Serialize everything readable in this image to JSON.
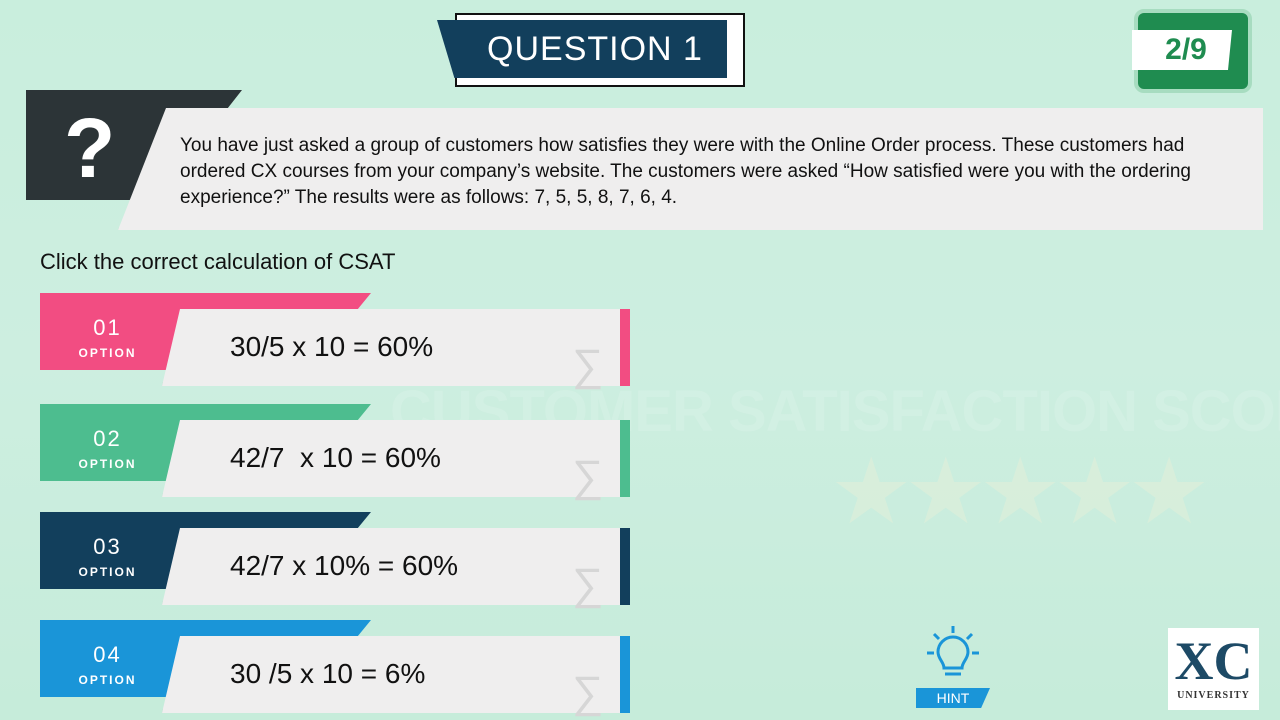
{
  "background": {
    "watermark": "CUSTOMER SATISFACTION SCORES",
    "stars": "★★★★★"
  },
  "header": {
    "title": "QUESTION 1",
    "counter": "2/9"
  },
  "question": {
    "icon": "question-mark-icon",
    "symbol": "?",
    "text": "You have just asked a group of customers how satisfies they were with the Online Order process.  These customers had ordered CX courses from your company’s website.  The customers were asked “How satisfied were you with the ordering experience?” The results were as follows: 7, 5, 5, 8, 7, 6, 4."
  },
  "instruction": "Click the correct calculation of  CSAT",
  "options": [
    {
      "number": "01",
      "label": "OPTION",
      "formula": "30/5 x 10 = 60%",
      "color": "#f24d82"
    },
    {
      "number": "02",
      "label": "OPTION",
      "formula": "42/7  x 10 = 60%",
      "color": "#4dbd8f"
    },
    {
      "number": "03",
      "label": "OPTION",
      "formula": "42/7 x 10% = 60%",
      "color": "#123f5c"
    },
    {
      "number": "04",
      "label": "OPTION",
      "formula": "30 /5 x 10 = 6%",
      "color": "#1a95d8"
    }
  ],
  "option_icon": "sigma-icon",
  "sigma": "∑",
  "hint": {
    "label": "HINT",
    "icon": "lightbulb-icon",
    "color": "#1a95d8"
  },
  "logo": {
    "mark": "XC",
    "text": "UNIVERSITY"
  }
}
